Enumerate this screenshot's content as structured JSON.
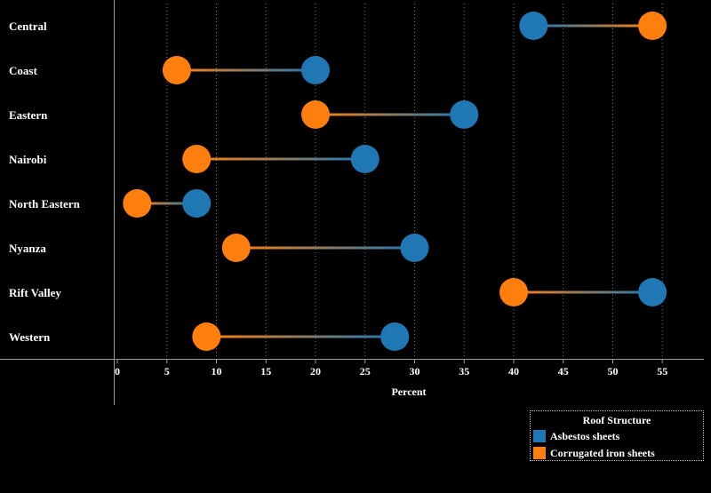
{
  "chart_data": {
    "type": "dumbbell",
    "categories": [
      "Central",
      "Coast",
      "Eastern",
      "Nairobi",
      "North Eastern",
      "Nyanza",
      "Rift Valley",
      "Western"
    ],
    "series": [
      {
        "name": "Asbestos sheets",
        "color": "#1f77b4",
        "values": [
          42,
          20,
          35,
          25,
          8,
          30,
          54,
          28
        ]
      },
      {
        "name": "Corrugated iron sheets",
        "color": "#ff7f0e",
        "values": [
          54,
          6,
          20,
          8,
          2,
          12,
          40,
          9
        ]
      }
    ],
    "xlabel": "Percent",
    "xlim": [
      0,
      58
    ],
    "xticks": [
      "0",
      "5",
      "10",
      "15",
      "20",
      "25",
      "30",
      "35",
      "40",
      "45",
      "50",
      "55"
    ],
    "grid": "vertical dotted",
    "legend": {
      "title": "Roof Structure",
      "position": "bottom-right",
      "items": [
        "Asbestos sheets",
        "Corrugated iron sheets"
      ]
    }
  }
}
